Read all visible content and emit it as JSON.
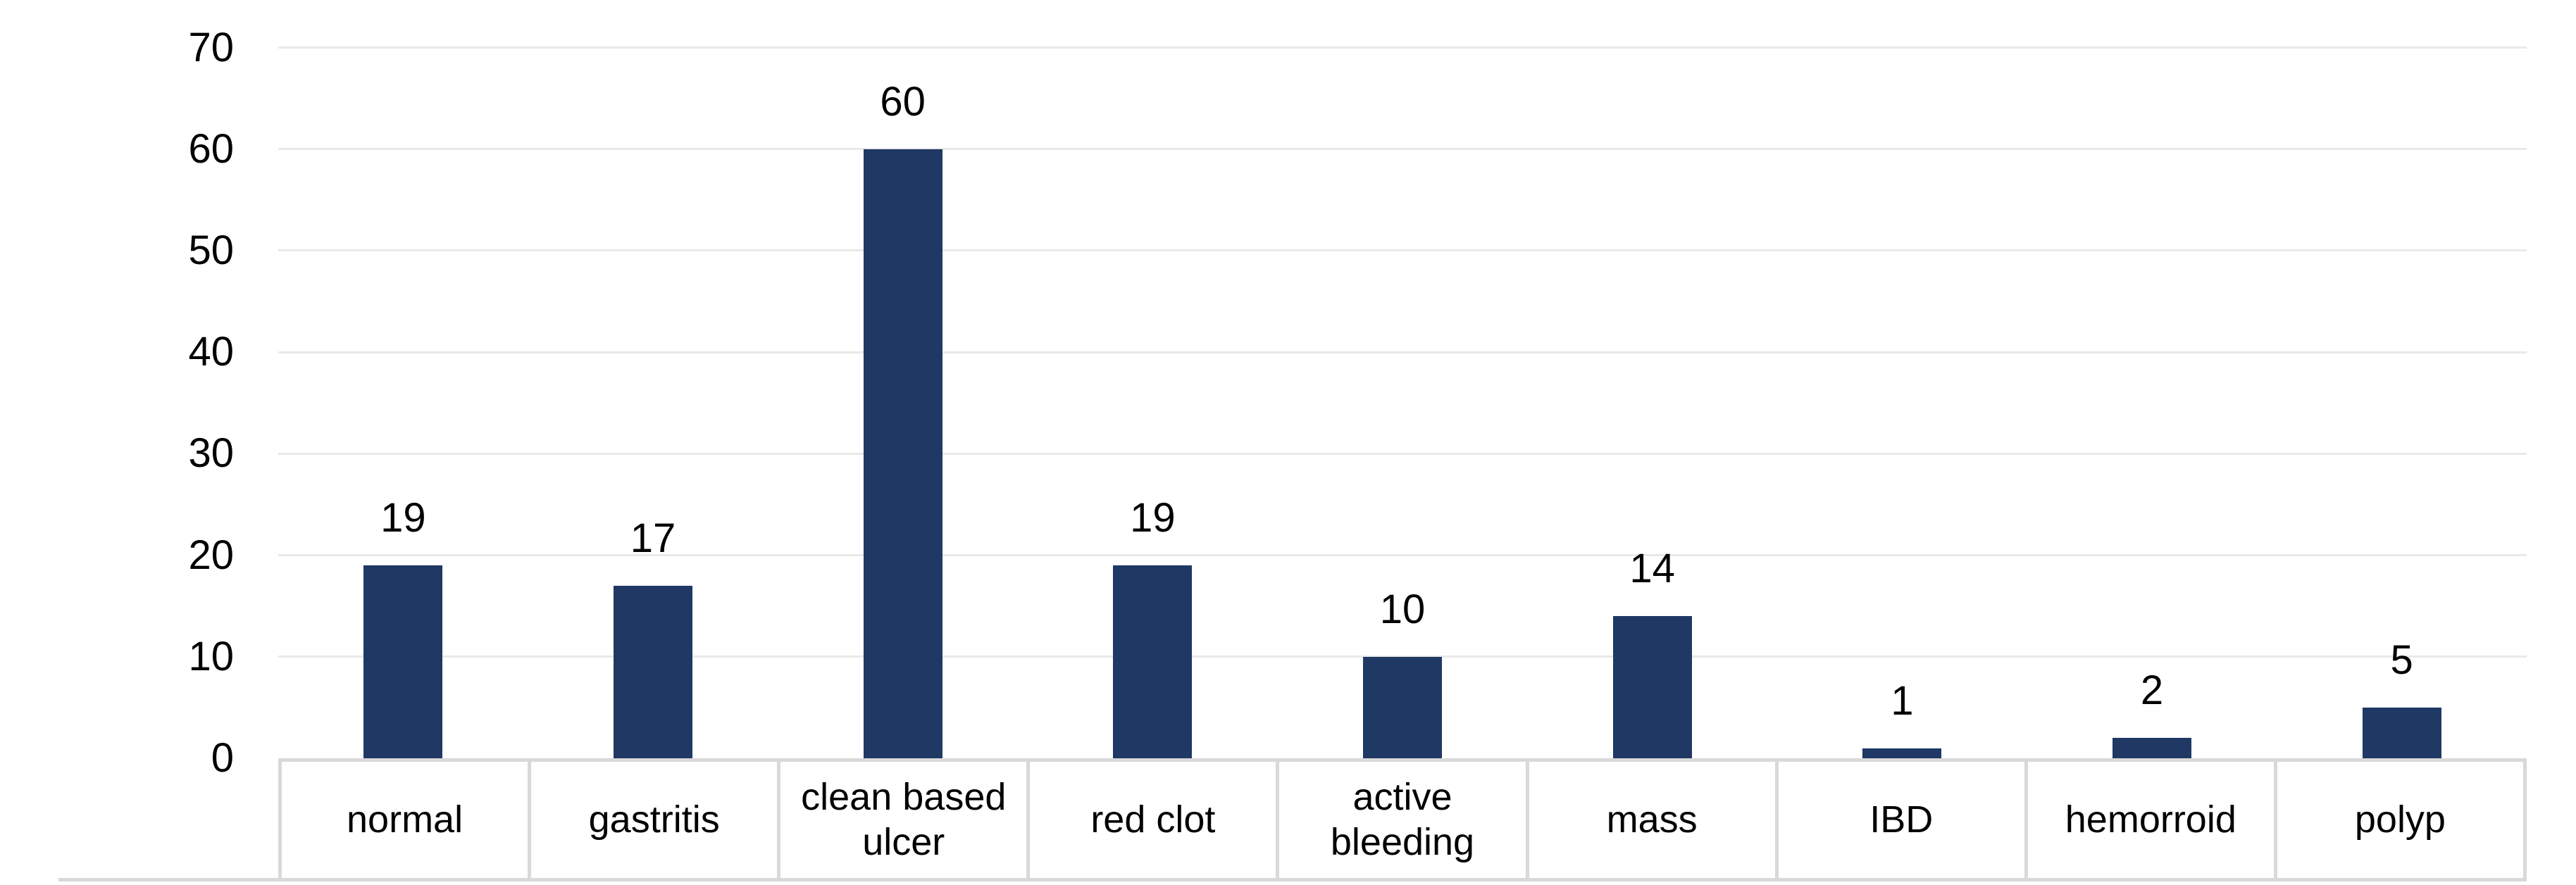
{
  "chart_data": {
    "type": "bar",
    "title": "",
    "xlabel": "",
    "ylabel": "",
    "categories": [
      "normal",
      "gastritis",
      "clean based ulcer",
      "red clot",
      "active bleeding",
      "mass",
      "IBD",
      "hemorroid",
      "polyp"
    ],
    "values": [
      19,
      17,
      60,
      19,
      10,
      14,
      1,
      2,
      5
    ],
    "ylim": [
      0,
      70
    ],
    "yticks": [
      0,
      10,
      20,
      30,
      40,
      50,
      60,
      70
    ],
    "grid": true,
    "legend": "none",
    "data_labels": "outside-end",
    "colors": {
      "bar": "#1F3864",
      "gridline": "#E9E9E9",
      "category_border": "#D9D9D9",
      "text": "#000000",
      "background": "#FFFFFF"
    }
  }
}
